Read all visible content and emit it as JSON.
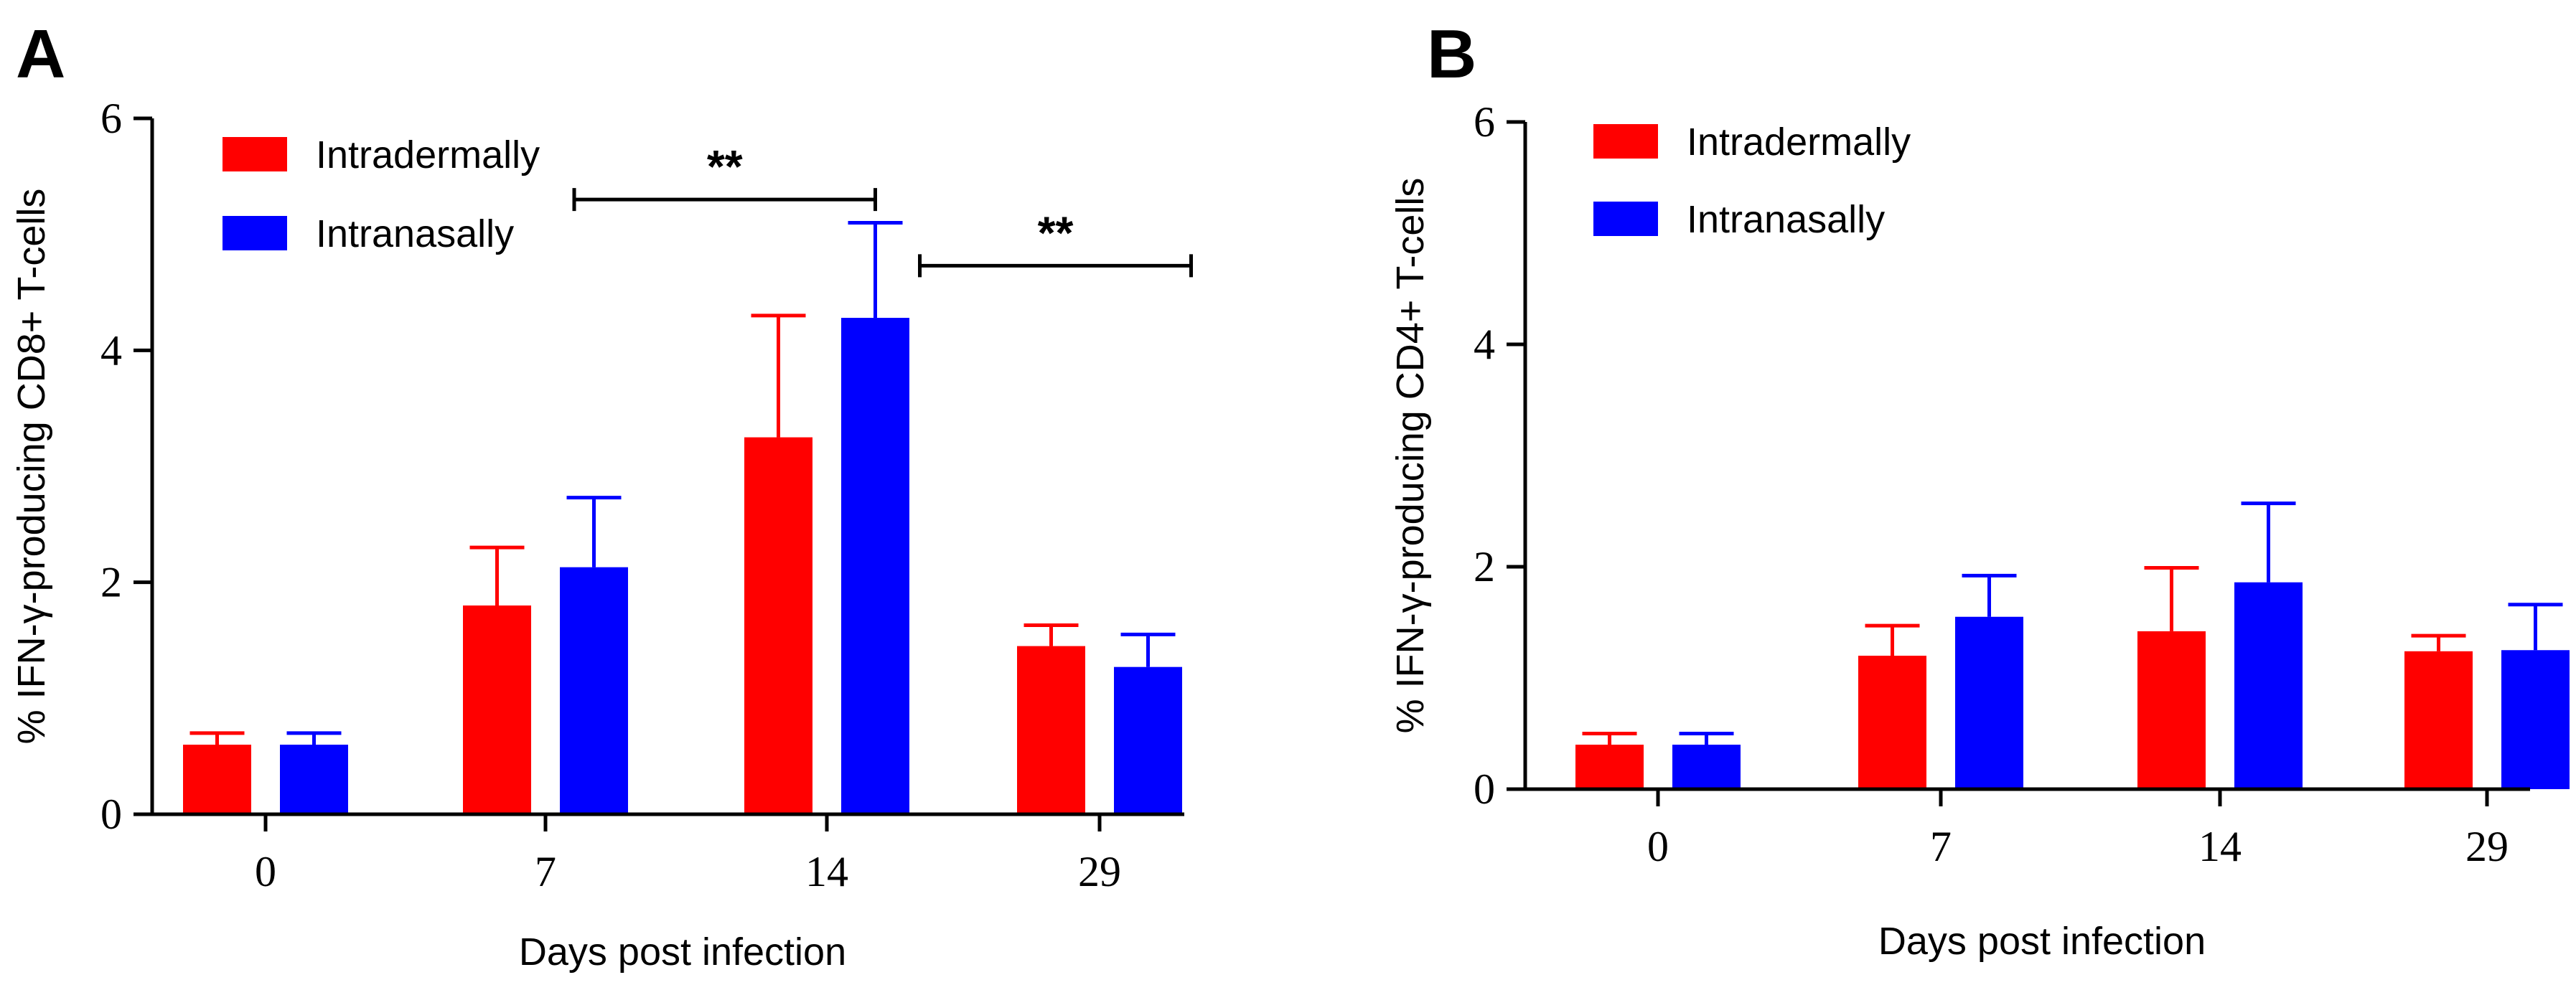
{
  "chart_data": [
    {
      "type": "bar",
      "panel_label": "A",
      "categories": [
        "0",
        "7",
        "14",
        "29"
      ],
      "series": [
        {
          "name": "Intradermally",
          "color": "#ff0000",
          "values": [
            0.6,
            1.8,
            3.25,
            1.45
          ],
          "errors": [
            0.1,
            0.5,
            1.05,
            0.18
          ]
        },
        {
          "name": "Intranasally",
          "color": "#0000ff",
          "values": [
            0.6,
            2.13,
            4.28,
            1.27
          ],
          "errors": [
            0.1,
            0.6,
            0.82,
            0.28
          ]
        }
      ],
      "xlabel": "Days post infection",
      "ylabel": "% IFN-γ-producing CD8+ T-cells",
      "ylim": [
        0,
        6
      ],
      "yticks": [
        0,
        2,
        4,
        6
      ],
      "yticks_labels": [
        "0",
        "2",
        "4",
        "6"
      ],
      "legend_position": "top-left",
      "significance": [
        {
          "label": "**",
          "from_category": 1,
          "to_category": 2,
          "y": 5.3
        },
        {
          "label": "**",
          "from_category": 2,
          "to_category": 3,
          "y": 4.73
        }
      ]
    },
    {
      "type": "bar",
      "panel_label": "B",
      "categories": [
        "0",
        "7",
        "14",
        "29"
      ],
      "series": [
        {
          "name": "Intradermally",
          "color": "#ff0000",
          "values": [
            0.4,
            1.2,
            1.42,
            1.24
          ],
          "errors": [
            0.1,
            0.27,
            0.57,
            0.14
          ]
        },
        {
          "name": "Intranasally",
          "color": "#0000ff",
          "values": [
            0.4,
            1.55,
            1.86,
            1.25
          ],
          "errors": [
            0.1,
            0.37,
            0.71,
            0.41
          ]
        }
      ],
      "xlabel": "Days post infection",
      "ylabel": "% IFN-γ-producing CD4+ T-cells",
      "ylim": [
        0,
        6
      ],
      "yticks": [
        0,
        2,
        4,
        6
      ],
      "yticks_labels": [
        "0",
        "2",
        "4",
        "6"
      ],
      "legend_position": "top-left",
      "significance": []
    }
  ]
}
